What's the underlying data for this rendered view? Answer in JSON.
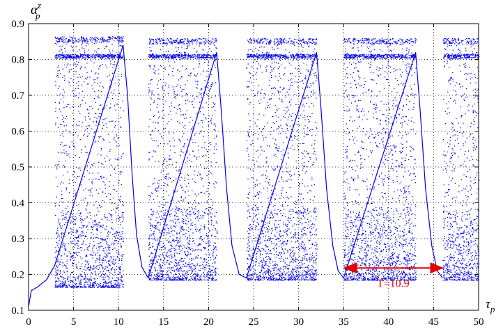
{
  "chart_data": {
    "type": "scatter",
    "title": "",
    "xlabel": {
      "main": "τ",
      "sub": "p"
    },
    "ylabel": {
      "main": "α",
      "sub": "p",
      "sup": "z"
    },
    "xlim": [
      0,
      50
    ],
    "ylim": [
      0.1,
      0.9
    ],
    "xticks": [
      0,
      5,
      10,
      15,
      20,
      25,
      30,
      35,
      40,
      45,
      50
    ],
    "xtick_labels": [
      "0",
      "5",
      "10",
      "15",
      "20",
      "25",
      "30",
      "35",
      "40",
      "45",
      "50"
    ],
    "yticks": [
      0.1,
      0.2,
      0.3,
      0.4,
      0.5,
      0.6,
      0.7,
      0.8,
      0.9
    ],
    "ytick_labels": [
      "0.1",
      "0.2",
      "0.3",
      "0.4",
      "0.5",
      "0.6",
      "0.7",
      "0.8",
      "0.9"
    ],
    "grid": "dotted",
    "series": [
      {
        "color": "#0000ee",
        "chaotic_bands": [
          {
            "x": [
              2.9,
              10.5
            ],
            "y": [
              0.165,
              0.865
            ]
          },
          {
            "x": [
              13.3,
              20.9
            ],
            "y": [
              0.185,
              0.86
            ]
          },
          {
            "x": [
              24.2,
              32.0
            ],
            "y": [
              0.185,
              0.86
            ]
          },
          {
            "x": [
              35.0,
              43.0
            ],
            "y": [
              0.185,
              0.86
            ]
          },
          {
            "x": [
              46.0,
              50.0
            ],
            "y": [
              0.185,
              0.86
            ]
          }
        ],
        "laminar_curve": [
          [
            0.0,
            0.11
          ],
          [
            0.3,
            0.155
          ],
          [
            1.0,
            0.165
          ],
          [
            2.0,
            0.185
          ],
          [
            2.9,
            0.225
          ],
          [
            10.5,
            0.84
          ],
          [
            11.0,
            0.7
          ],
          [
            11.5,
            0.48
          ],
          [
            12.0,
            0.31
          ],
          [
            12.6,
            0.22
          ],
          [
            13.3,
            0.19
          ],
          [
            20.9,
            0.82
          ],
          [
            21.4,
            0.66
          ],
          [
            22.0,
            0.44
          ],
          [
            22.6,
            0.28
          ],
          [
            23.4,
            0.2
          ],
          [
            24.2,
            0.19
          ],
          [
            32.0,
            0.82
          ],
          [
            32.5,
            0.66
          ],
          [
            33.1,
            0.44
          ],
          [
            33.8,
            0.28
          ],
          [
            34.4,
            0.21
          ],
          [
            35.0,
            0.19
          ],
          [
            43.0,
            0.82
          ],
          [
            43.5,
            0.66
          ],
          [
            44.1,
            0.44
          ],
          [
            44.8,
            0.28
          ],
          [
            45.4,
            0.21
          ],
          [
            46.0,
            0.19
          ]
        ]
      }
    ],
    "annotations": [
      {
        "text": "T=10.9",
        "arrow": {
          "x": [
            35.1,
            46.0
          ],
          "y": 0.218
        },
        "text_x": 40.5,
        "text_y": 0.165,
        "color": "#e00000"
      }
    ]
  }
}
